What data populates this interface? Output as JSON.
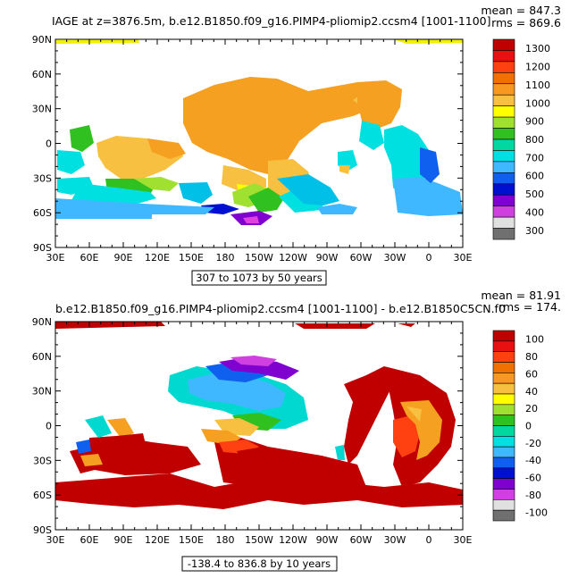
{
  "chart_data": [
    {
      "type": "heatmap",
      "title": "IAGE at z=3876.5m, b.e12.B1850.f09_g16.PIMP4-pliomip2.ccsm4 [1001-1100]",
      "stats": {
        "mean": "mean = 847.3",
        "rms": "rms = 869.6"
      },
      "x_ticks": [
        "30E",
        "60E",
        "90E",
        "120E",
        "150E",
        "180",
        "150W",
        "120W",
        "90W",
        "60W",
        "30W",
        "0",
        "30E"
      ],
      "y_ticks": [
        "90N",
        "60N",
        "30N",
        "0",
        "30S",
        "60S",
        "90S"
      ],
      "colorbar_labels": [
        "1300",
        "1200",
        "1100",
        "1000",
        "900",
        "800",
        "700",
        "600",
        "500",
        "400",
        "300"
      ],
      "colorbar_colors": [
        "#c00000",
        "#e81010",
        "#ff4010",
        "#f07000",
        "#f89820",
        "#f8c040",
        "#ffff00",
        "#a0e030",
        "#30c020",
        "#00d8a0",
        "#00e0e0",
        "#40b8ff",
        "#1060f0",
        "#0010d0",
        "#8000d0",
        "#d040e0",
        "#e0e0e0",
        "#707070"
      ],
      "range_label": "307 to 1073 by 50 years"
    },
    {
      "type": "heatmap",
      "title": "b.e12.B1850.f09_g16.PIMP4-pliomip2.ccsm4 [1001-1100] - b.e12.B1850C5CN.f0",
      "stats": {
        "mean": "mean = 81.91",
        "rms": "rms = 174."
      },
      "x_ticks": [
        "30E",
        "60E",
        "90E",
        "120E",
        "150E",
        "180",
        "150W",
        "120W",
        "90W",
        "60W",
        "30W",
        "0",
        "30E"
      ],
      "y_ticks": [
        "90N",
        "60N",
        "30N",
        "0",
        "30S",
        "60S",
        "90S"
      ],
      "colorbar_labels": [
        "100",
        "80",
        "60",
        "40",
        "20",
        "0",
        "-20",
        "-40",
        "-60",
        "-80",
        "-100"
      ],
      "colorbar_colors": [
        "#c00000",
        "#e81010",
        "#ff4010",
        "#f07000",
        "#f89820",
        "#f8c040",
        "#ffff00",
        "#a0e030",
        "#30c020",
        "#00d8a0",
        "#00e0e0",
        "#40b8ff",
        "#1060f0",
        "#0010d0",
        "#8000d0",
        "#d040e0",
        "#e0e0e0",
        "#707070"
      ],
      "range_label": "-138.4 to 836.8 by 10 years"
    }
  ]
}
